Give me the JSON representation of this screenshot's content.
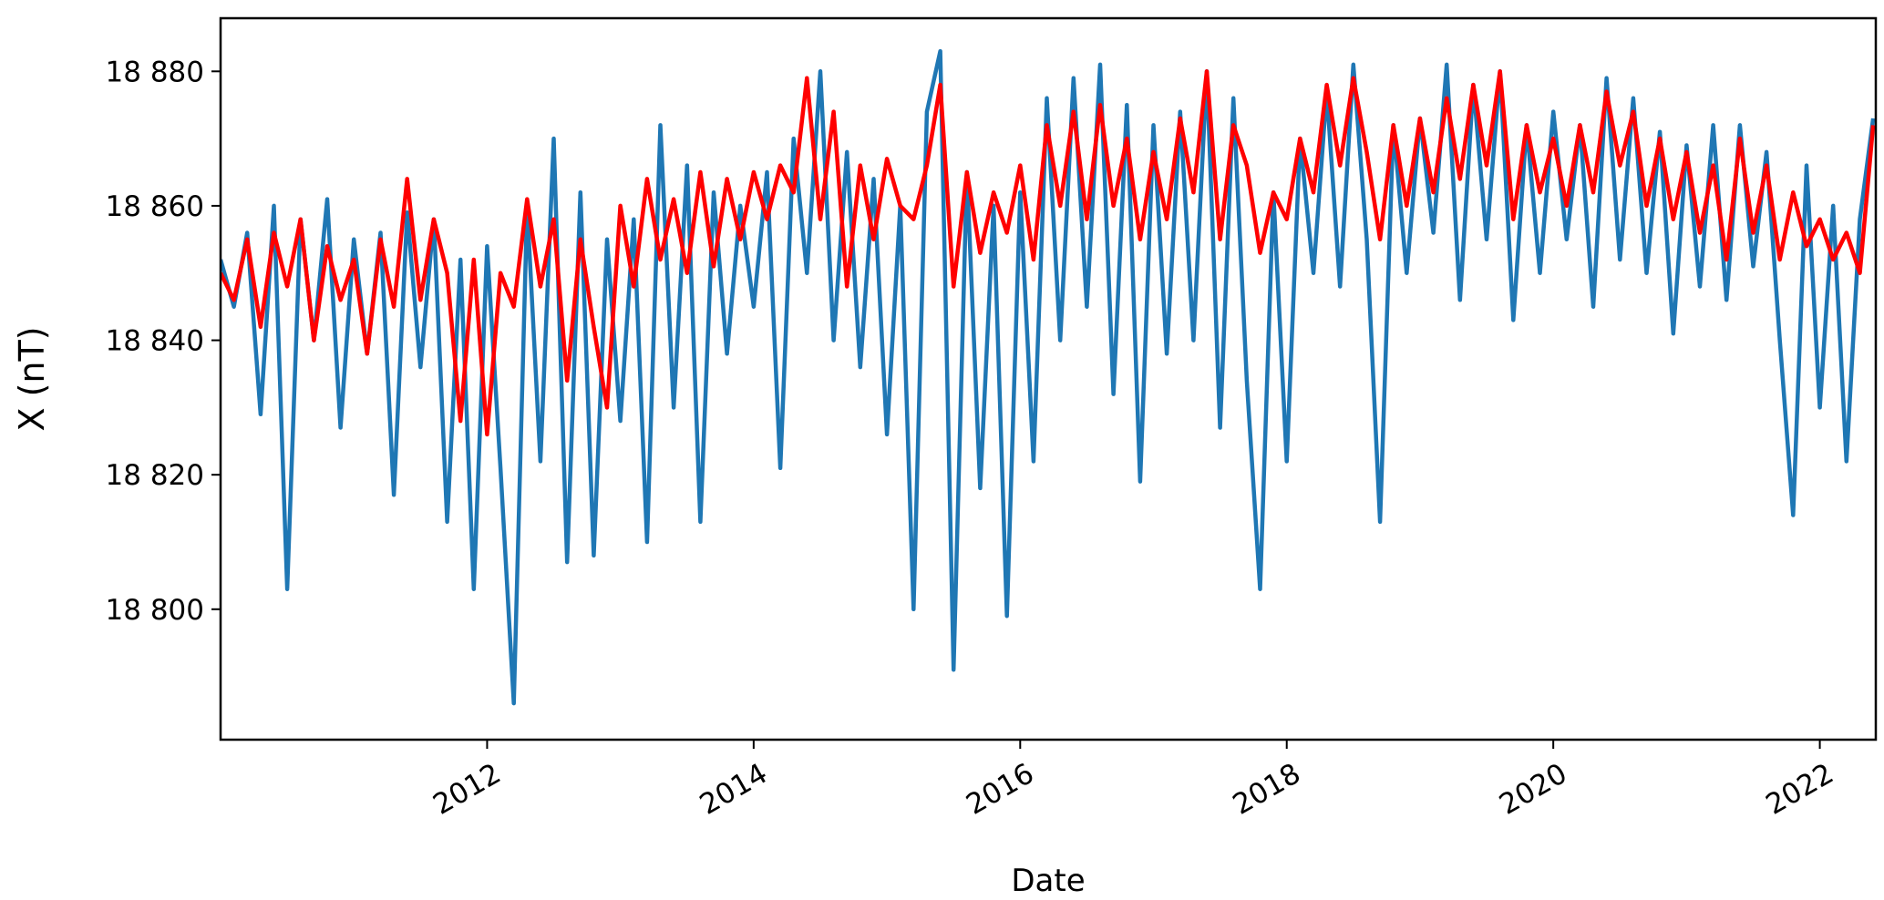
{
  "chart_data": {
    "type": "line",
    "title": "",
    "xlabel": "Date",
    "ylabel": "X (nT)",
    "xlim": [
      2010.0,
      2022.42
    ],
    "ylim": [
      18780.6,
      18887.9
    ],
    "grid": false,
    "xticks": [
      2012,
      2014,
      2016,
      2018,
      2020,
      2022
    ],
    "xtick_labels": [
      "2012",
      "2014",
      "2016",
      "2018",
      "2020",
      "2022"
    ],
    "yticks": [
      18800,
      18820,
      18840,
      18860,
      18880
    ],
    "ytick_labels": [
      "18 800",
      "18 820",
      "18 840",
      "18 860",
      "18 880"
    ],
    "x": [
      2010.0,
      2010.1,
      2010.2,
      2010.3,
      2010.4,
      2010.5,
      2010.6,
      2010.7,
      2010.8,
      2010.9,
      2011.0,
      2011.1,
      2011.2,
      2011.3,
      2011.4,
      2011.5,
      2011.6,
      2011.7,
      2011.8,
      2011.9,
      2012.0,
      2012.1,
      2012.2,
      2012.3,
      2012.4,
      2012.5,
      2012.6,
      2012.7,
      2012.8,
      2012.9,
      2013.0,
      2013.1,
      2013.2,
      2013.3,
      2013.4,
      2013.5,
      2013.6,
      2013.7,
      2013.8,
      2013.9,
      2014.0,
      2014.1,
      2014.2,
      2014.3,
      2014.4,
      2014.5,
      2014.6,
      2014.7,
      2014.8,
      2014.9,
      2015.0,
      2015.1,
      2015.2,
      2015.3,
      2015.4,
      2015.5,
      2015.6,
      2015.7,
      2015.8,
      2015.9,
      2016.0,
      2016.1,
      2016.2,
      2016.3,
      2016.4,
      2016.5,
      2016.6,
      2016.7,
      2016.8,
      2016.9,
      2017.0,
      2017.1,
      2017.2,
      2017.3,
      2017.4,
      2017.5,
      2017.6,
      2017.7,
      2017.8,
      2017.9,
      2018.0,
      2018.1,
      2018.2,
      2018.3,
      2018.4,
      2018.5,
      2018.6,
      2018.7,
      2018.8,
      2018.9,
      2019.0,
      2019.1,
      2019.2,
      2019.3,
      2019.4,
      2019.5,
      2019.6,
      2019.7,
      2019.8,
      2019.9,
      2020.0,
      2020.1,
      2020.2,
      2020.3,
      2020.4,
      2020.5,
      2020.6,
      2020.7,
      2020.8,
      2020.9,
      2021.0,
      2021.1,
      2021.2,
      2021.3,
      2021.4,
      2021.5,
      2021.6,
      2021.7,
      2021.8,
      2021.9,
      2022.0,
      2022.1,
      2022.2,
      2022.3,
      2022.4
    ],
    "series": [
      {
        "color": "#1f77b4",
        "values": [
          18852,
          18845,
          18856,
          18829,
          18860,
          18803,
          18858,
          18840,
          18861,
          18827,
          18855,
          18838,
          18856,
          18817,
          18859,
          18836,
          18858,
          18813,
          18852,
          18803,
          18854,
          18821,
          18786,
          18860,
          18822,
          18870,
          18807,
          18862,
          18808,
          18855,
          18828,
          18858,
          18810,
          18872,
          18830,
          18866,
          18813,
          18862,
          18838,
          18860,
          18845,
          18865,
          18821,
          18870,
          18850,
          18880,
          18840,
          18868,
          18836,
          18864,
          18826,
          18860,
          18800,
          18874,
          18883,
          18791,
          18865,
          18818,
          18860,
          18799,
          18862,
          18822,
          18876,
          18840,
          18879,
          18845,
          18881,
          18832,
          18875,
          18819,
          18872,
          18838,
          18874,
          18840,
          18880,
          18827,
          18876,
          18834,
          18803,
          18862,
          18822,
          18870,
          18850,
          18877,
          18848,
          18881,
          18855,
          18813,
          18872,
          18850,
          18873,
          18856,
          18881,
          18846,
          18878,
          18855,
          18880,
          18843,
          18872,
          18850,
          18874,
          18855,
          18872,
          18845,
          18879,
          18852,
          18876,
          18850,
          18871,
          18841,
          18869,
          18848,
          18872,
          18846,
          18872,
          18851,
          18868,
          18840,
          18814,
          18866,
          18830,
          18860,
          18822,
          18858,
          18873
        ]
      },
      {
        "color": "#ff0000",
        "values": [
          18850,
          18846,
          18855,
          18842,
          18856,
          18848,
          18858,
          18840,
          18854,
          18846,
          18852,
          18838,
          18855,
          18845,
          18864,
          18846,
          18858,
          18850,
          18828,
          18852,
          18826,
          18850,
          18845,
          18861,
          18848,
          18858,
          18834,
          18855,
          18842,
          18830,
          18860,
          18848,
          18864,
          18852,
          18861,
          18850,
          18865,
          18851,
          18864,
          18855,
          18865,
          18858,
          18866,
          18862,
          18879,
          18858,
          18874,
          18848,
          18866,
          18855,
          18867,
          18860,
          18858,
          18866,
          18878,
          18848,
          18865,
          18853,
          18862,
          18856,
          18866,
          18852,
          18872,
          18860,
          18874,
          18858,
          18875,
          18860,
          18870,
          18855,
          18868,
          18858,
          18873,
          18862,
          18880,
          18855,
          18872,
          18866,
          18853,
          18862,
          18858,
          18870,
          18862,
          18878,
          18866,
          18879,
          18868,
          18855,
          18872,
          18860,
          18873,
          18862,
          18876,
          18864,
          18878,
          18866,
          18880,
          18858,
          18872,
          18862,
          18870,
          18860,
          18872,
          18862,
          18877,
          18866,
          18874,
          18860,
          18870,
          18858,
          18868,
          18856,
          18866,
          18852,
          18870,
          18856,
          18866,
          18852,
          18862,
          18854,
          18858,
          18852,
          18856,
          18850,
          18872
        ]
      }
    ]
  }
}
